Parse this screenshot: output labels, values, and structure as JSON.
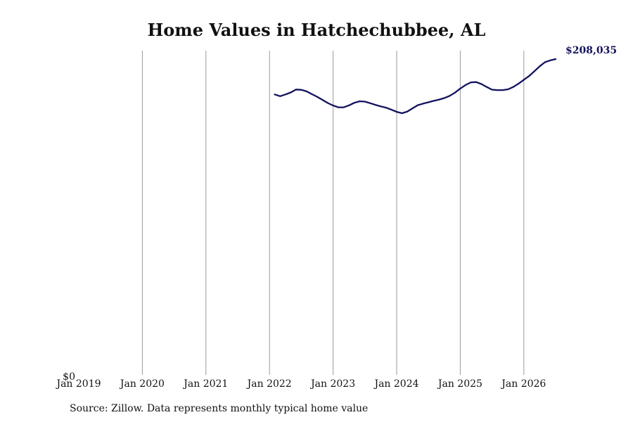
{
  "chart_data": {
    "type": "line",
    "title": "Home Values in Hatchechubbee, AL",
    "source": "Source: Zillow. Data represents monthly typical home value",
    "x_ticks": [
      "Jan 2019",
      "Jan 2020",
      "Jan 2021",
      "Jan 2022",
      "Jan 2023",
      "Jan 2024",
      "Jan 2025",
      "Jan 2026"
    ],
    "y_ticks": [
      "$0"
    ],
    "xlim": [
      "2019-01",
      "2026-07"
    ],
    "ylim": [
      0,
      208035
    ],
    "grid": "vertical",
    "line_color": "#12125e",
    "end_label": "$208,035",
    "series": [
      {
        "x": [
          "2022-02",
          "2022-03",
          "2022-04",
          "2022-05",
          "2022-06",
          "2022-07",
          "2022-08",
          "2022-09",
          "2022-10",
          "2022-11",
          "2022-12",
          "2023-01",
          "2023-02",
          "2023-03",
          "2023-04",
          "2023-05",
          "2023-06",
          "2023-07",
          "2023-08",
          "2023-09",
          "2023-10",
          "2023-11",
          "2023-12",
          "2024-01",
          "2024-02",
          "2024-03",
          "2024-04",
          "2024-05",
          "2024-06",
          "2024-07",
          "2024-08",
          "2024-09",
          "2024-10",
          "2024-11",
          "2024-12",
          "2025-01",
          "2025-02",
          "2025-03",
          "2025-04",
          "2025-05",
          "2025-06",
          "2025-07",
          "2025-08",
          "2025-09",
          "2025-10",
          "2025-11",
          "2025-12",
          "2026-01",
          "2026-02",
          "2026-03",
          "2026-04",
          "2026-05",
          "2026-06",
          "2026-07"
        ],
        "y": [
          181600,
          180500,
          181600,
          182900,
          184800,
          184600,
          183600,
          181800,
          180100,
          178100,
          176100,
          174500,
          173300,
          173300,
          174600,
          176200,
          177200,
          177000,
          176000,
          174900,
          173900,
          173100,
          171800,
          170400,
          169500,
          170600,
          172700,
          174700,
          175700,
          176600,
          177500,
          178300,
          179300,
          180700,
          182800,
          185400,
          187700,
          189400,
          189600,
          188300,
          186400,
          184700,
          184400,
          184400,
          184900,
          186400,
          188600,
          191100,
          193500,
          196600,
          199800,
          202400,
          203600,
          204400
        ]
      }
    ]
  }
}
